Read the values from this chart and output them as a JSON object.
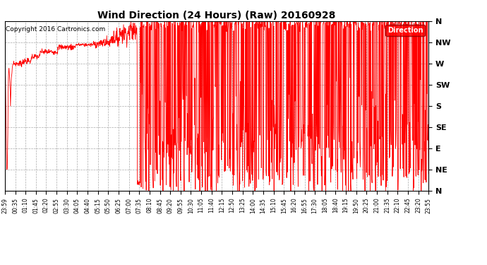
{
  "title": "Wind Direction (24 Hours) (Raw) 20160928",
  "copyright": "Copyright 2016 Cartronics.com",
  "line_color": "#ff0000",
  "bg_color": "#ffffff",
  "grid_color": "#aaaaaa",
  "legend_label": "Direction",
  "legend_bg": "#ff0000",
  "legend_text_color": "#ffffff",
  "ytick_labels": [
    "N",
    "NW",
    "W",
    "SW",
    "S",
    "SE",
    "E",
    "NE",
    "N"
  ],
  "ytick_values": [
    360,
    315,
    270,
    225,
    180,
    135,
    90,
    45,
    0
  ],
  "ylim": [
    0,
    360
  ],
  "xtick_labels": [
    "23:59",
    "00:35",
    "01:10",
    "01:45",
    "02:20",
    "02:55",
    "03:30",
    "04:05",
    "04:40",
    "05:15",
    "05:50",
    "06:25",
    "07:00",
    "07:35",
    "08:10",
    "08:45",
    "09:20",
    "09:55",
    "10:30",
    "11:05",
    "11:40",
    "12:15",
    "12:50",
    "13:25",
    "14:00",
    "14:35",
    "15:10",
    "15:45",
    "16:20",
    "16:55",
    "17:30",
    "18:05",
    "18:40",
    "19:15",
    "19:50",
    "20:25",
    "21:00",
    "21:35",
    "22:10",
    "22:45",
    "23:20",
    "23:55"
  ]
}
